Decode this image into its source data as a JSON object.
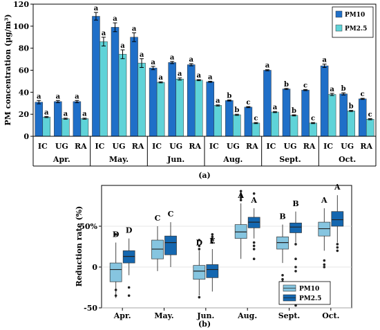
{
  "chart_data": [
    {
      "type": "bar",
      "panel_label": "(a)",
      "ylabel": "PM concentration (µg/m³)",
      "ylim": [
        0,
        120
      ],
      "yticks": [
        0,
        20,
        40,
        60,
        80,
        100,
        120
      ],
      "months": [
        "Apr.",
        "May.",
        "Jun.",
        "Aug.",
        "Sept.",
        "Oct."
      ],
      "sites": [
        "IC",
        "UG",
        "RA"
      ],
      "legend_position": "top-right",
      "series": [
        {
          "name": "PM10",
          "color": "#1f6fc8",
          "values": [
            31,
            31.5,
            31.5,
            109,
            99,
            90,
            62,
            67,
            65,
            49.5,
            32.5,
            26.5,
            60,
            43,
            42,
            64,
            38.5,
            34
          ],
          "errors": [
            1.5,
            1,
            1,
            3.5,
            4,
            4,
            1.5,
            1,
            1,
            0.5,
            0.5,
            0.5,
            0.5,
            0.5,
            0.5,
            1.5,
            1,
            0.5
          ],
          "sig_letters": [
            "a",
            "a",
            "a",
            "a",
            "a",
            "a",
            "a",
            "a",
            "a",
            "a",
            "b",
            "c",
            "a",
            "b",
            "c",
            "a",
            "b",
            "c"
          ]
        },
        {
          "name": "PM2.5",
          "color": "#5fd3d8",
          "values": [
            17.5,
            16,
            16,
            86,
            74.5,
            66.5,
            49,
            52,
            51,
            28,
            19.5,
            12,
            22,
            19,
            12,
            38,
            23,
            15.5
          ],
          "errors": [
            0.5,
            0.5,
            0.5,
            4,
            4,
            4,
            0.5,
            1,
            0.5,
            0.5,
            0.5,
            0.5,
            0.5,
            0.5,
            0.5,
            1,
            0.5,
            0.5
          ],
          "sig_letters": [
            "a",
            "a",
            "a",
            "a",
            "a",
            "a",
            "a",
            "a",
            "a",
            "a",
            "b",
            "c",
            "a",
            "b",
            "c",
            "a",
            "b",
            "c"
          ]
        }
      ]
    },
    {
      "type": "box",
      "panel_label": "(b)",
      "ylabel": "Reduction rate (%)",
      "ylim": [
        -50,
        100
      ],
      "yticks": [
        -50,
        0,
        50
      ],
      "ytick_labels": [
        "-50",
        "0",
        "50%"
      ],
      "categories": [
        "Apr.",
        "May.",
        "Jun.",
        "Aug.",
        "Sept.",
        "Oct."
      ],
      "legend_position": "bottom-right",
      "series": [
        {
          "name": "PM10",
          "color": "#86c5e0",
          "letters": [
            "D",
            "C",
            "D",
            "A",
            "B",
            "A"
          ],
          "boxes": [
            {
              "low": -38,
              "q1": -18,
              "median": -3,
              "q3": 5,
              "high": 30,
              "outliers": [
                40,
                -28,
                -35
              ]
            },
            {
              "low": -5,
              "q1": 10,
              "median": 22,
              "q3": 33,
              "high": 50,
              "outliers": []
            },
            {
              "low": -35,
              "q1": -15,
              "median": -5,
              "q3": 2,
              "high": 20,
              "outliers": [
                33,
                26,
                22,
                -37
              ]
            },
            {
              "low": 10,
              "q1": 35,
              "median": 43,
              "q3": 52,
              "high": 78,
              "outliers": [
                93,
                88,
                85,
                82
              ]
            },
            {
              "low": 5,
              "q1": 22,
              "median": 30,
              "q3": 37,
              "high": 52,
              "outliers": [
                -10,
                -15,
                -18
              ]
            },
            {
              "low": 20,
              "q1": 38,
              "median": 47,
              "q3": 55,
              "high": 72,
              "outliers": [
                8,
                3,
                0
              ]
            }
          ]
        },
        {
          "name": "PM2.5",
          "color": "#1467b0",
          "letters": [
            "D",
            "C",
            "E",
            "A",
            "B",
            "A"
          ],
          "boxes": [
            {
              "low": -10,
              "q1": 5,
              "median": 13,
              "q3": 20,
              "high": 35,
              "outliers": [
                -25,
                -35
              ]
            },
            {
              "low": 0,
              "q1": 15,
              "median": 30,
              "q3": 38,
              "high": 55,
              "outliers": []
            },
            {
              "low": -30,
              "q1": -13,
              "median": -3,
              "q3": 3,
              "high": 22,
              "outliers": [
                40,
                37,
                34,
                30
              ]
            },
            {
              "low": 35,
              "q1": 48,
              "median": 55,
              "q3": 61,
              "high": 72,
              "outliers": [
                90,
                30,
                26,
                22,
                10
              ]
            },
            {
              "low": 30,
              "q1": 42,
              "median": 49,
              "q3": 54,
              "high": 68,
              "outliers": [
                28,
                10,
                0,
                -5,
                -47
              ]
            },
            {
              "low": 30,
              "q1": 50,
              "median": 58,
              "q3": 68,
              "high": 88,
              "outliers": [
                28,
                24,
                20
              ]
            }
          ]
        }
      ]
    }
  ]
}
